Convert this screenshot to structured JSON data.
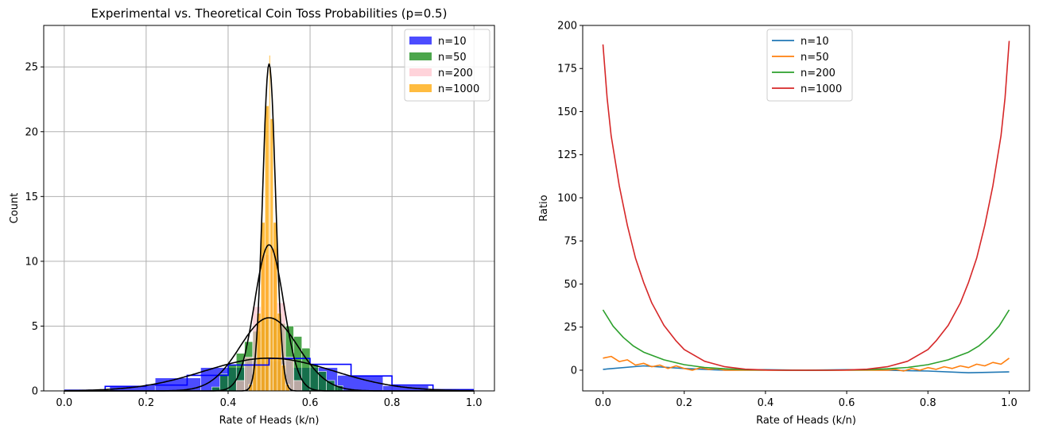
{
  "chart_data": [
    {
      "type": "bar",
      "title": "Experimental vs. Theoretical Coin Toss Probabilities (p=0.5)",
      "xlabel": "Rate of Heads (k/n)",
      "ylabel": "Count",
      "xlim": [
        -0.05,
        1.05
      ],
      "ylim": [
        0,
        28.2
      ],
      "xticks": [
        0.0,
        0.2,
        0.4,
        0.6,
        0.8,
        1.0
      ],
      "xtick_labels": [
        "0.0",
        "0.2",
        "0.4",
        "0.6",
        "0.8",
        "1.0"
      ],
      "yticks": [
        0,
        5,
        10,
        15,
        20,
        25
      ],
      "ytick_labels": [
        "0",
        "5",
        "10",
        "15",
        "20",
        "25"
      ],
      "grid": true,
      "legend_position": "top-right",
      "series": [
        {
          "name": "n=10",
          "color": "#0000ff",
          "opacity": 0.7,
          "bins": [
            {
              "x0": 0.111,
              "x1": 0.222,
              "count": 0.4
            },
            {
              "x0": 0.222,
              "x1": 0.333,
              "count": 1.0
            },
            {
              "x0": 0.333,
              "x1": 0.444,
              "count": 1.8
            },
            {
              "x0": 0.444,
              "x1": 0.556,
              "count": 2.3
            },
            {
              "x0": 0.556,
              "x1": 0.667,
              "count": 1.8
            },
            {
              "x0": 0.667,
              "x1": 0.778,
              "count": 1.2
            },
            {
              "x0": 0.778,
              "x1": 0.889,
              "count": 0.4
            },
            {
              "x0": 0.889,
              "x1": 1.0,
              "count": 0.1
            }
          ],
          "edge_line": [
            [
              0.0,
              0.05
            ],
            [
              0.1,
              0.05
            ],
            [
              0.1,
              0.35
            ],
            [
              0.2,
              0.35
            ],
            [
              0.2,
              0.45
            ],
            [
              0.3,
              0.45
            ],
            [
              0.3,
              1.2
            ],
            [
              0.4,
              1.2
            ],
            [
              0.4,
              2.0
            ],
            [
              0.5,
              2.0
            ],
            [
              0.5,
              2.5
            ],
            [
              0.6,
              2.5
            ],
            [
              0.6,
              2.05
            ],
            [
              0.7,
              2.05
            ],
            [
              0.7,
              1.15
            ],
            [
              0.8,
              1.15
            ],
            [
              0.8,
              0.45
            ],
            [
              0.9,
              0.45
            ],
            [
              0.9,
              0.1
            ],
            [
              1.0,
              0.1
            ]
          ],
          "fit_curve": {
            "mu": 0.5,
            "sigma": 0.158,
            "scale": 1.0
          }
        },
        {
          "name": "n=50",
          "color": "#008000",
          "opacity": 0.7,
          "bins": [
            {
              "x0": 0.36,
              "x1": 0.38,
              "count": 0.3
            },
            {
              "x0": 0.38,
              "x1": 0.4,
              "count": 1.3
            },
            {
              "x0": 0.4,
              "x1": 0.42,
              "count": 2.0
            },
            {
              "x0": 0.42,
              "x1": 0.44,
              "count": 2.9
            },
            {
              "x0": 0.44,
              "x1": 0.46,
              "count": 3.8
            },
            {
              "x0": 0.46,
              "x1": 0.48,
              "count": 4.6
            },
            {
              "x0": 0.48,
              "x1": 0.5,
              "count": 5.5
            },
            {
              "x0": 0.5,
              "x1": 0.52,
              "count": 5.7
            },
            {
              "x0": 0.52,
              "x1": 0.54,
              "count": 5.2
            },
            {
              "x0": 0.54,
              "x1": 0.56,
              "count": 5.0
            },
            {
              "x0": 0.56,
              "x1": 0.58,
              "count": 4.2
            },
            {
              "x0": 0.58,
              "x1": 0.6,
              "count": 3.3
            },
            {
              "x0": 0.6,
              "x1": 0.62,
              "count": 2.1
            },
            {
              "x0": 0.62,
              "x1": 0.64,
              "count": 1.5
            },
            {
              "x0": 0.64,
              "x1": 0.66,
              "count": 0.8
            },
            {
              "x0": 0.66,
              "x1": 0.68,
              "count": 0.4
            }
          ],
          "fit_curve": {
            "mu": 0.5,
            "sigma": 0.0707,
            "scale": 1.0
          }
        },
        {
          "name": "n=200",
          "color": "#ffc0cb",
          "opacity": 0.7,
          "bins": [
            {
              "x0": 0.42,
              "x1": 0.44,
              "count": 0.8
            },
            {
              "x0": 0.44,
              "x1": 0.46,
              "count": 2.6
            },
            {
              "x0": 0.46,
              "x1": 0.48,
              "count": 6.5
            },
            {
              "x0": 0.48,
              "x1": 0.5,
              "count": 10.5
            },
            {
              "x0": 0.5,
              "x1": 0.52,
              "count": 11.0
            },
            {
              "x0": 0.52,
              "x1": 0.54,
              "count": 6.8
            },
            {
              "x0": 0.54,
              "x1": 0.56,
              "count": 2.6
            },
            {
              "x0": 0.56,
              "x1": 0.58,
              "count": 0.8
            }
          ],
          "fit_curve": {
            "mu": 0.5,
            "sigma": 0.0354,
            "scale": 1.0
          }
        },
        {
          "name": "n=1000",
          "color": "#ffa500",
          "opacity": 0.75,
          "bins": [
            {
              "x0": 0.45,
              "x1": 0.46,
              "count": 0.5
            },
            {
              "x0": 0.46,
              "x1": 0.47,
              "count": 2.0
            },
            {
              "x0": 0.47,
              "x1": 0.48,
              "count": 6.0
            },
            {
              "x0": 0.48,
              "x1": 0.49,
              "count": 13.0
            },
            {
              "x0": 0.49,
              "x1": 0.5,
              "count": 22.0
            },
            {
              "x0": 0.5,
              "x1": 0.503,
              "count": 25.9
            },
            {
              "x0": 0.503,
              "x1": 0.51,
              "count": 21.0
            },
            {
              "x0": 0.51,
              "x1": 0.52,
              "count": 13.0
            },
            {
              "x0": 0.52,
              "x1": 0.53,
              "count": 6.0
            },
            {
              "x0": 0.53,
              "x1": 0.54,
              "count": 2.0
            },
            {
              "x0": 0.54,
              "x1": 0.55,
              "count": 0.5
            }
          ],
          "fit_curve": {
            "mu": 0.5,
            "sigma": 0.0158,
            "scale": 1.0
          }
        }
      ]
    },
    {
      "type": "line",
      "title": "",
      "xlabel": "Rate of Heads (k/n)",
      "ylabel": "Ratio",
      "xlim": [
        -0.05,
        1.05
      ],
      "ylim": [
        -12,
        200
      ],
      "xticks": [
        0.0,
        0.2,
        0.4,
        0.6,
        0.8,
        1.0
      ],
      "xtick_labels": [
        "0.0",
        "0.2",
        "0.4",
        "0.6",
        "0.8",
        "1.0"
      ],
      "yticks": [
        0,
        25,
        50,
        75,
        100,
        125,
        150,
        175,
        200
      ],
      "ytick_labels": [
        "0",
        "25",
        "50",
        "75",
        "100",
        "125",
        "150",
        "175",
        "200"
      ],
      "grid": false,
      "legend_position": "top-center",
      "series": [
        {
          "name": "n=10",
          "color": "#1f77b4",
          "x": [
            0.0,
            0.1,
            0.2,
            0.3,
            0.4,
            0.5,
            0.6,
            0.7,
            0.8,
            0.9,
            1.0
          ],
          "y": [
            0.5,
            2.5,
            1.0,
            0.0,
            0.3,
            0.0,
            0.3,
            0.0,
            -0.5,
            -1.5,
            -1.0
          ]
        },
        {
          "name": "n=50",
          "color": "#ff7f0e",
          "x": [
            0.0,
            0.02,
            0.04,
            0.06,
            0.08,
            0.1,
            0.12,
            0.14,
            0.16,
            0.18,
            0.2,
            0.22,
            0.24,
            0.26,
            0.28,
            0.3,
            0.35,
            0.4,
            0.45,
            0.5,
            0.55,
            0.6,
            0.65,
            0.7,
            0.72,
            0.74,
            0.76,
            0.78,
            0.8,
            0.82,
            0.84,
            0.86,
            0.88,
            0.9,
            0.92,
            0.94,
            0.96,
            0.98,
            1.0
          ],
          "y": [
            7.0,
            8.0,
            5.0,
            6.0,
            3.0,
            4.0,
            2.0,
            3.0,
            1.0,
            2.5,
            1.0,
            0.0,
            1.5,
            0.5,
            1.0,
            0.0,
            0.0,
            0.0,
            0.0,
            0.0,
            0.0,
            0.0,
            0.0,
            0.0,
            0.5,
            -0.5,
            1.0,
            0.0,
            1.5,
            0.5,
            2.0,
            1.0,
            2.5,
            1.5,
            3.5,
            2.5,
            4.5,
            3.5,
            7.0
          ]
        },
        {
          "name": "n=200",
          "color": "#2ca02c",
          "x": [
            0.0,
            0.025,
            0.05,
            0.075,
            0.1,
            0.15,
            0.2,
            0.25,
            0.3,
            0.35,
            0.4,
            0.45,
            0.5,
            0.55,
            0.6,
            0.65,
            0.7,
            0.75,
            0.8,
            0.85,
            0.9,
            0.925,
            0.95,
            0.975,
            1.0
          ],
          "y": [
            35.0,
            25.5,
            19.0,
            14.0,
            10.5,
            6.0,
            3.2,
            1.6,
            0.8,
            0.3,
            0.1,
            0.0,
            0.0,
            0.0,
            0.1,
            0.3,
            0.8,
            1.6,
            3.2,
            6.0,
            10.5,
            14.0,
            19.0,
            25.5,
            35.0
          ]
        },
        {
          "name": "n=1000",
          "color": "#d62728",
          "x": [
            0.0,
            0.01,
            0.02,
            0.04,
            0.06,
            0.08,
            0.1,
            0.12,
            0.15,
            0.18,
            0.2,
            0.25,
            0.3,
            0.35,
            0.4,
            0.45,
            0.5,
            0.55,
            0.6,
            0.65,
            0.7,
            0.75,
            0.8,
            0.82,
            0.85,
            0.88,
            0.9,
            0.92,
            0.94,
            0.96,
            0.98,
            0.99,
            1.0
          ],
          "y": [
            189.0,
            158.0,
            136.0,
            107.0,
            84.0,
            65.0,
            51.0,
            39.0,
            26.0,
            17.0,
            12.0,
            5.2,
            2.0,
            0.6,
            0.1,
            0.0,
            0.0,
            0.0,
            0.1,
            0.6,
            2.0,
            5.2,
            12.0,
            17.0,
            26.0,
            39.0,
            51.0,
            65.0,
            84.0,
            107.0,
            136.0,
            158.0,
            191.0
          ]
        }
      ]
    }
  ]
}
